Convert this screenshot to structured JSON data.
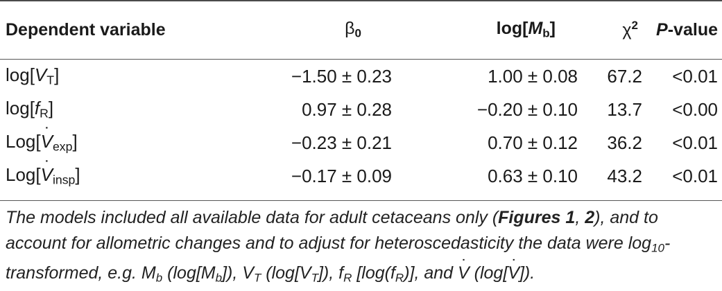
{
  "table": {
    "headers": {
      "dependent": "Dependent variable",
      "beta": "β",
      "beta_sub": "0",
      "logmb_pre": "log[",
      "logmb_var": "M",
      "logmb_sub": "b",
      "logmb_post": "]",
      "chi": "χ",
      "chi_sup": "2",
      "p_var": "P",
      "p_rest": "-value"
    },
    "rows": [
      {
        "pre": "log[",
        "var": "V",
        "sub": "T",
        "post": "]",
        "dot": false,
        "beta": "−1.50 ± 0.23",
        "logmb": "1.00 ± 0.08",
        "chi2": "67.2",
        "p": "<0.01"
      },
      {
        "pre": "log[",
        "var": "f",
        "sub": "R",
        "post": "]",
        "dot": false,
        "beta": "0.97 ± 0.28",
        "logmb": "−0.20 ± 0.10",
        "chi2": "13.7",
        "p": "<0.00"
      },
      {
        "pre": "Log[",
        "var": "V",
        "sub": "exp",
        "post": "]",
        "dot": true,
        "beta": "−0.23 ± 0.21",
        "logmb": "0.70 ± 0.12",
        "chi2": "36.2",
        "p": "<0.01"
      },
      {
        "pre": "Log[",
        "var": "V",
        "sub": "insp",
        "post": "]",
        "dot": true,
        "beta": "−0.17 ± 0.09",
        "logmb": "0.63 ± 0.10",
        "chi2": "43.2",
        "p": "<0.01"
      }
    ]
  },
  "caption": {
    "p1": "The models included all available data for adult cetaceans only (",
    "fig": "Figures 1",
    "sep": ", ",
    "fig2": "2",
    "p2": "), and to account for allometric changes and to adjust for heteroscedasticity the data were log",
    "sub10": "10",
    "p3": "-transformed, e.g. M",
    "sub_b": "b",
    "p4": " (log[M",
    "sub_b2": "b",
    "p5": "]), V",
    "sub_t": "T",
    "p6": " (log[V",
    "sub_t2": "T",
    "p7": "]), f",
    "sub_r": "R",
    "p8": " [log(f",
    "sub_r2": "R",
    "p9": ")], and ",
    "v": "V",
    "p10": " (log[",
    "v2": "V",
    "p11": "])."
  }
}
